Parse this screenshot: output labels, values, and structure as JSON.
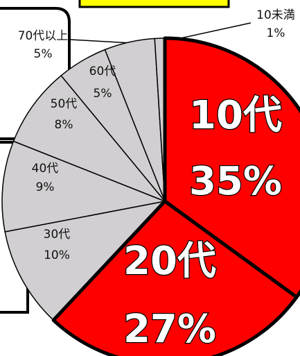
{
  "chart_data": {
    "type": "pie",
    "categories": [
      "10代",
      "20代",
      "30代",
      "40代",
      "50代",
      "60代",
      "70代以上",
      "10未満"
    ],
    "values": [
      35,
      27,
      10,
      9,
      8,
      5,
      5,
      1
    ],
    "value_labels": [
      "35%",
      "27%",
      "10%",
      "9%",
      "8%",
      "5%",
      "5%",
      "1%"
    ],
    "colors": [
      "#ff0000",
      "#ff0000",
      "#d1cfd1",
      "#d1cfd1",
      "#d1cfd1",
      "#d1cfd1",
      "#d1cfd1",
      "#d1cfd1"
    ]
  }
}
